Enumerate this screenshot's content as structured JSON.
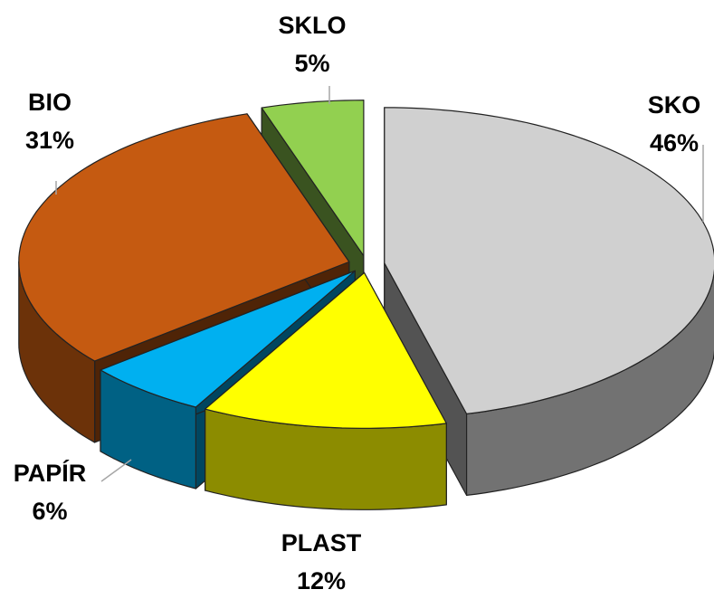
{
  "chart_data": {
    "type": "pie3d",
    "categories": [
      "SKO",
      "PLAST",
      "PAPÍR",
      "BIO",
      "SKLO"
    ],
    "values": [
      46,
      12,
      6,
      31,
      5
    ],
    "value_labels": [
      "46%",
      "12%",
      "6%",
      "31%",
      "5%"
    ],
    "colors": [
      "#d0d0d0",
      "#ffff00",
      "#00b0f0",
      "#c55a11",
      "#92d050"
    ]
  }
}
